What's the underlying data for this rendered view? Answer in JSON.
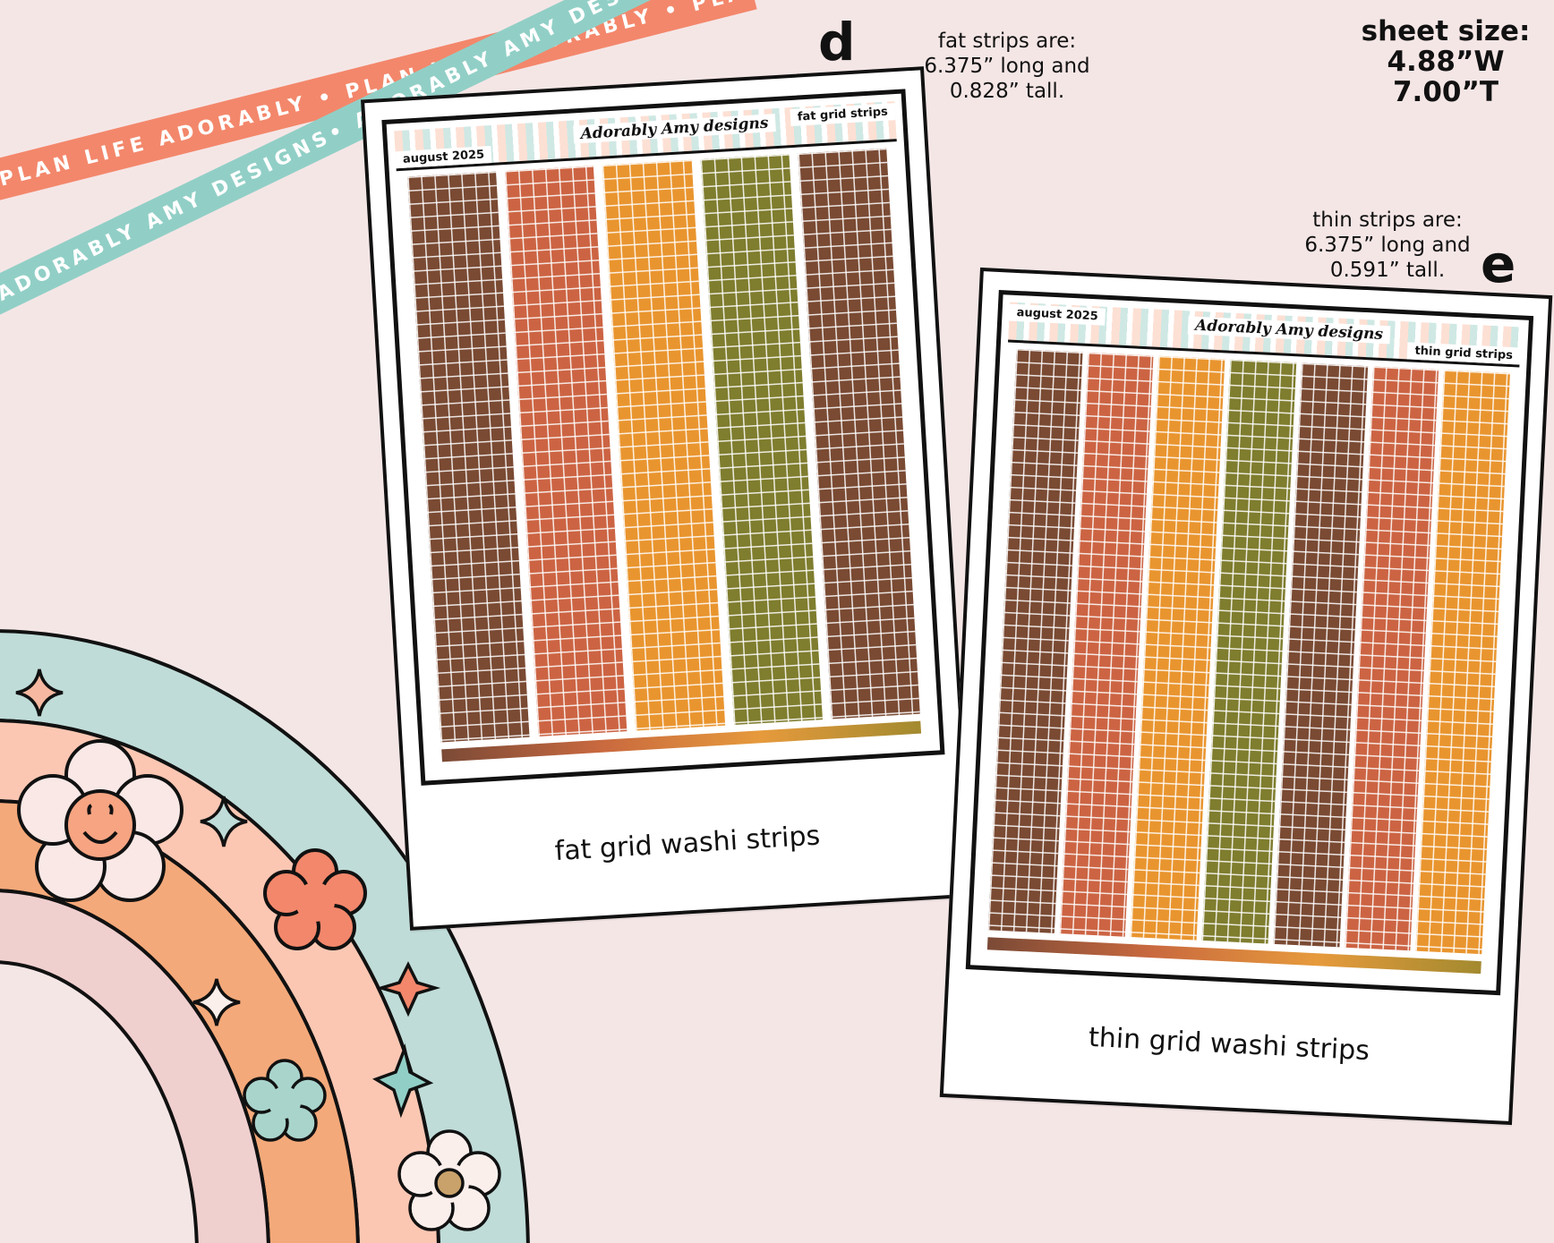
{
  "ribbons": {
    "top_text": "PLAN LIFE ADORABLY • PLAN LIFE ADORABLY • PLAN LIFE ADORABLY •",
    "bottom_text": "ADORABLY AMY DESIGNS• ADORABLY AMY DESIGNS• ADORABLY AMY DESIGNS•",
    "top_color": "#f3876b",
    "bottom_color": "#91cfc6"
  },
  "sheet_size": {
    "label": "sheet size:",
    "width": "4.88”W",
    "height": "7.00”T"
  },
  "fat": {
    "letter": "d",
    "info_line1": "fat strips are:",
    "info_line2": "6.375” long and",
    "info_line3": "0.828” tall.",
    "sheet_date": "august 2025",
    "sheet_logo": "Adorably Amy designs",
    "sheet_title": "fat grid strips",
    "caption": "fat grid washi strips",
    "strip_colors": [
      "#7a4a33",
      "#cc6443",
      "#e9952f",
      "#7f7d2e",
      "#7a4a33"
    ]
  },
  "thin": {
    "letter": "e",
    "info_line1": "thin strips are:",
    "info_line2": "6.375” long and",
    "info_line3": "0.591” tall.",
    "sheet_date": "august 2025",
    "sheet_logo": "Adorably Amy designs",
    "sheet_title": "thin grid strips",
    "caption": "thin grid washi strips",
    "strip_colors": [
      "#7a4a33",
      "#cc6443",
      "#e9952f",
      "#7f7d2e",
      "#7a4a33",
      "#cc6443",
      "#e9952f"
    ]
  },
  "rainbow": {
    "band_colors": [
      "#bfdcd8",
      "#fbc7b3",
      "#f4a97a",
      "#f0cfcf"
    ],
    "icons": [
      "smiley-flower-icon",
      "sparkle-icon",
      "flower-icon",
      "star-icon"
    ]
  }
}
